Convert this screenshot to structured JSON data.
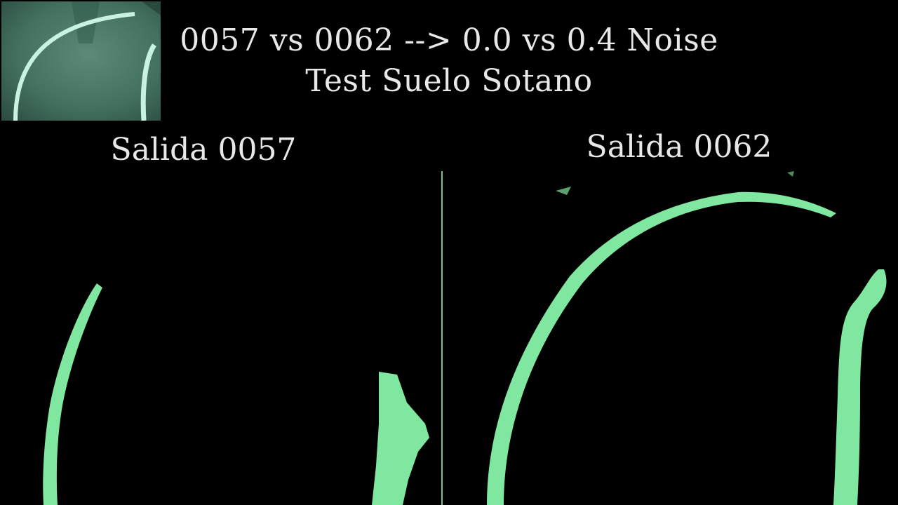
{
  "header": {
    "title_line1": "0057 vs 0062 --> 0.0 vs 0.4 Noise",
    "title_line2": "Test Suelo Sotano"
  },
  "panels": {
    "left_label": "Salida 0057",
    "right_label": "Salida 0062"
  },
  "colors": {
    "background": "#000000",
    "text": "#e8e8e8",
    "mask_green": "#7fe7a0",
    "thumbnail_bg": "#3f6e5e",
    "thumbnail_line": "#c9f2e2"
  }
}
